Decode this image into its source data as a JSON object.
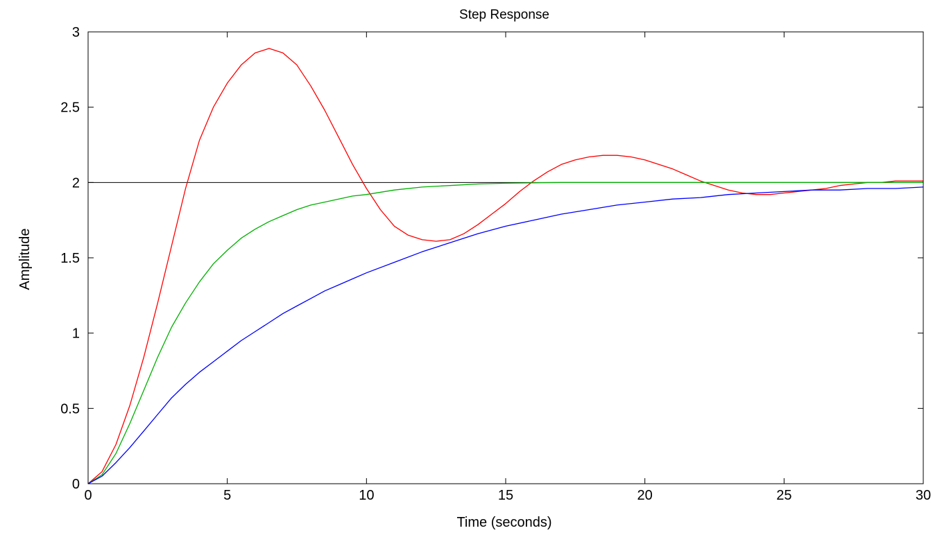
{
  "chart_data": {
    "type": "line",
    "title": "Step Response",
    "xlabel": "Time (seconds)",
    "ylabel": "Amplitude",
    "xlim": [
      0,
      30
    ],
    "ylim": [
      0,
      3
    ],
    "xticks": [
      "0",
      "5",
      "10",
      "15",
      "20",
      "25",
      "30"
    ],
    "yticks": [
      "0",
      "0.5",
      "1",
      "1.5",
      "2",
      "2.5",
      "3"
    ],
    "grid": false,
    "reference_line": {
      "y": 2,
      "color": "#000000"
    },
    "series": [
      {
        "color": "#ff0000",
        "x": [
          0,
          0.5,
          1,
          1.5,
          2,
          2.5,
          3,
          3.5,
          4,
          4.5,
          5,
          5.5,
          6,
          6.5,
          7,
          7.5,
          8,
          8.5,
          9,
          9.5,
          10,
          10.5,
          11,
          11.5,
          12,
          12.5,
          13,
          13.5,
          14,
          14.5,
          15,
          15.5,
          16,
          16.5,
          17,
          17.5,
          18,
          18.5,
          19,
          19.5,
          20,
          20.5,
          21,
          21.5,
          22,
          22.5,
          23,
          23.5,
          24,
          24.5,
          25,
          25.5,
          26,
          26.5,
          27,
          27.5,
          28,
          28.5,
          29,
          29.5,
          30
        ],
        "y": [
          0,
          0.08,
          0.26,
          0.52,
          0.84,
          1.2,
          1.58,
          1.96,
          2.28,
          2.5,
          2.66,
          2.78,
          2.86,
          2.89,
          2.86,
          2.78,
          2.64,
          2.48,
          2.3,
          2.12,
          1.96,
          1.82,
          1.71,
          1.65,
          1.62,
          1.61,
          1.62,
          1.66,
          1.72,
          1.79,
          1.86,
          1.94,
          2.01,
          2.07,
          2.12,
          2.15,
          2.17,
          2.18,
          2.18,
          2.17,
          2.15,
          2.12,
          2.09,
          2.05,
          2.01,
          1.98,
          1.95,
          1.93,
          1.92,
          1.92,
          1.93,
          1.94,
          1.95,
          1.96,
          1.98,
          1.99,
          2.0,
          2.0,
          2.01,
          2.01,
          2.01
        ]
      },
      {
        "color": "#00b000",
        "x": [
          0,
          0.5,
          1,
          1.5,
          2,
          2.5,
          3,
          3.5,
          4,
          4.5,
          5,
          5.5,
          6,
          6.5,
          7,
          7.5,
          8,
          8.5,
          9,
          9.5,
          10,
          11,
          12,
          13,
          14,
          15,
          16,
          17,
          18,
          19,
          20,
          21,
          22,
          23,
          24,
          25,
          26,
          27,
          28,
          29,
          30
        ],
        "y": [
          0,
          0.06,
          0.2,
          0.4,
          0.62,
          0.84,
          1.04,
          1.2,
          1.34,
          1.46,
          1.55,
          1.63,
          1.69,
          1.74,
          1.78,
          1.82,
          1.85,
          1.87,
          1.89,
          1.91,
          1.92,
          1.95,
          1.97,
          1.98,
          1.99,
          1.995,
          1.998,
          2.0,
          2.0,
          2.0,
          2.0,
          2.0,
          2.0,
          2.0,
          2.0,
          2.0,
          2.0,
          2.0,
          2.0,
          2.0,
          2.0
        ]
      },
      {
        "color": "#0000ff",
        "x": [
          0,
          0.5,
          1,
          1.5,
          2,
          2.5,
          3,
          3.5,
          4,
          4.5,
          5,
          5.5,
          6,
          6.5,
          7,
          7.5,
          8,
          8.5,
          9,
          9.5,
          10,
          11,
          12,
          13,
          14,
          15,
          16,
          17,
          18,
          19,
          20,
          21,
          22,
          23,
          24,
          25,
          26,
          27,
          28,
          29,
          30
        ],
        "y": [
          0,
          0.05,
          0.14,
          0.24,
          0.35,
          0.46,
          0.57,
          0.66,
          0.74,
          0.81,
          0.88,
          0.95,
          1.01,
          1.07,
          1.13,
          1.18,
          1.23,
          1.28,
          1.32,
          1.36,
          1.4,
          1.47,
          1.54,
          1.6,
          1.66,
          1.71,
          1.75,
          1.79,
          1.82,
          1.85,
          1.87,
          1.89,
          1.9,
          1.92,
          1.93,
          1.94,
          1.95,
          1.95,
          1.96,
          1.96,
          1.97
        ]
      }
    ]
  }
}
